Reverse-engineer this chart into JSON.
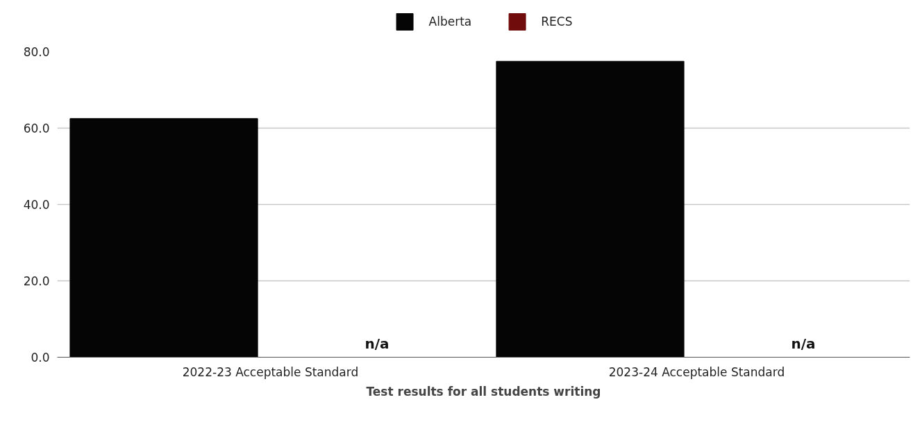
{
  "chart_data": {
    "type": "bar",
    "xlabel": "Test results for all students writing",
    "categories": [
      "2022-23 Acceptable Standard",
      "2023-24 Acceptable Standard"
    ],
    "series": [
      {
        "name": "Alberta",
        "color": "#050505",
        "values": [
          62.5,
          77.5
        ]
      },
      {
        "name": "RECS",
        "color": "#700c0c",
        "values": [
          null,
          null
        ],
        "value_labels": [
          "n/a",
          "n/a"
        ]
      }
    ],
    "ylim": [
      0,
      80
    ],
    "yticks": [
      {
        "value": 0,
        "label": "0.0"
      },
      {
        "value": 20,
        "label": "20.0"
      },
      {
        "value": 40,
        "label": "40.0"
      },
      {
        "value": 60,
        "label": "60.0"
      },
      {
        "value": 80,
        "label": "80.0"
      }
    ],
    "grid": "y",
    "legend": "top"
  }
}
